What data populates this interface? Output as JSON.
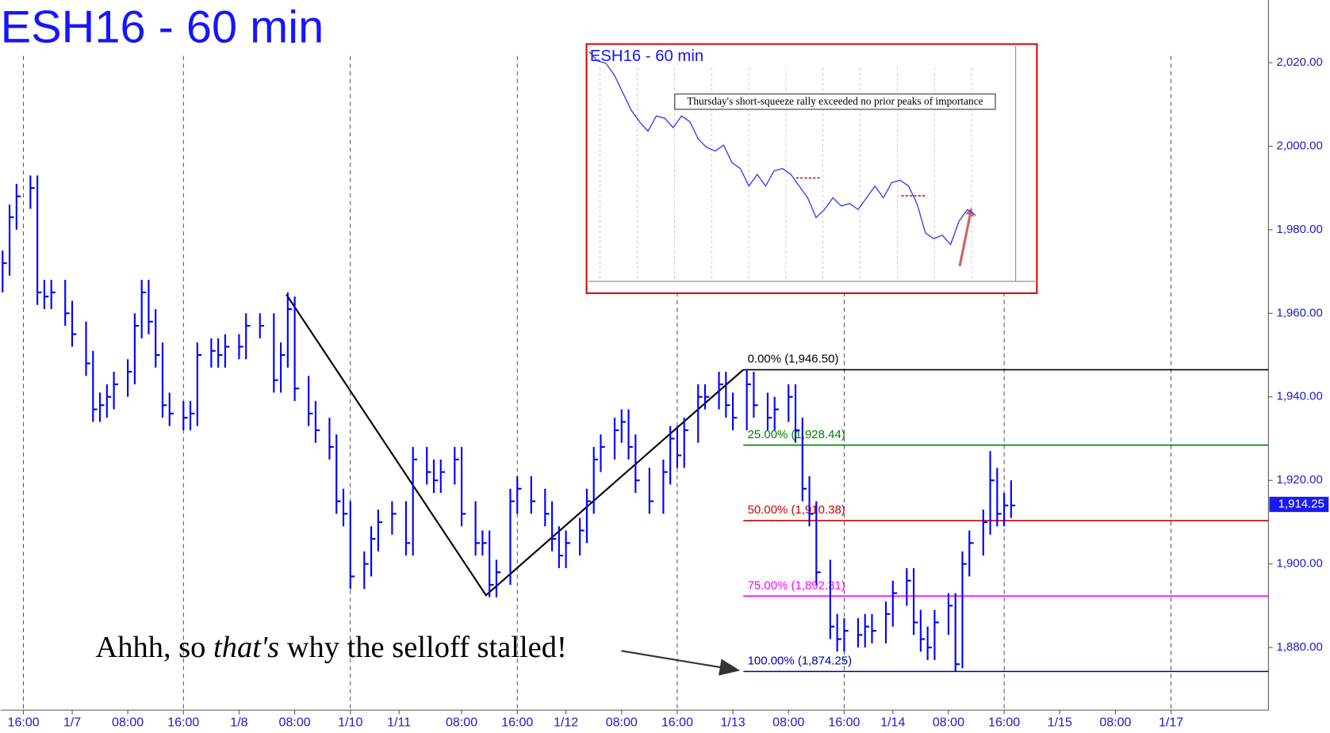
{
  "chart_data": {
    "type": "ohlc",
    "title": "ESH16 - 60 min",
    "x": [
      -3,
      -2,
      -1,
      1,
      2,
      3,
      4,
      6,
      7,
      9,
      10,
      11,
      12,
      13,
      15,
      16,
      17,
      18,
      19,
      20,
      21,
      23,
      24,
      25,
      27,
      28,
      29,
      31,
      32,
      34,
      36,
      37,
      38,
      39,
      41,
      42,
      44,
      45,
      46,
      47,
      49,
      50,
      51,
      53,
      55,
      56,
      58,
      59,
      60,
      62,
      63,
      65,
      66,
      67,
      68,
      70,
      71,
      73,
      75,
      76,
      77,
      78,
      80,
      81,
      82,
      83,
      85,
      86,
      87,
      88,
      90,
      92,
      93,
      94,
      95,
      97,
      98,
      100,
      101,
      102,
      104,
      105,
      107,
      108,
      110,
      111,
      112,
      113,
      114,
      116,
      117,
      118,
      120,
      121,
      122,
      124,
      125,
      127,
      128,
      129,
      130,
      131,
      133,
      134,
      135,
      136,
      138,
      139,
      140,
      141,
      142
    ],
    "high": [
      1975,
      1986,
      1991,
      1993,
      1993,
      1968,
      1968,
      1968,
      1963,
      1958,
      1951,
      1941,
      1943,
      1946,
      1949,
      1960,
      1968,
      1968,
      1961,
      1953,
      1941,
      1939,
      1939,
      1953,
      1954,
      1954,
      1955,
      1955,
      1960,
      1960,
      1960,
      1953,
      1965,
      1964,
      1945,
      1939,
      1935,
      1931,
      1918,
      1915,
      1903,
      1909,
      1913,
      1915,
      1915,
      1928,
      1928,
      1925,
      1925,
      1928,
      1928,
      1915,
      1908,
      1908,
      1901,
      1918,
      1921,
      1921,
      1918,
      1915,
      1909,
      1908,
      1911,
      1918,
      1928,
      1931,
      1935,
      1937,
      1937,
      1931,
      1923,
      1925,
      1933,
      1933,
      1935,
      1943,
      1943,
      1946,
      1946,
      1941,
      1946.5,
      1946,
      1941,
      1940,
      1943,
      1943,
      1935,
      1921,
      1915,
      1901,
      1888,
      1887,
      1887,
      1888,
      1888,
      1891,
      1896,
      1899,
      1899,
      1889,
      1885,
      1889,
      1893,
      1893,
      1903,
      1908,
      1913,
      1927,
      1923,
      1917,
      1920
    ],
    "low": [
      1965,
      1969,
      1980,
      1985,
      1962,
      1961,
      1961,
      1957,
      1952,
      1945,
      1934,
      1934,
      1935,
      1937,
      1940,
      1943,
      1954,
      1955,
      1947,
      1935,
      1933,
      1932,
      1932,
      1933,
      1947,
      1947,
      1947,
      1949,
      1949,
      1954,
      1941,
      1941,
      1947,
      1939,
      1933,
      1929,
      1925,
      1912,
      1909,
      1894,
      1894,
      1897,
      1903,
      1907,
      1902,
      1902,
      1919,
      1917,
      1917,
      1919,
      1909,
      1902,
      1902,
      1892,
      1892,
      1895,
      1912,
      1912,
      1909,
      1903,
      1899,
      1899,
      1902,
      1905,
      1912,
      1922,
      1925,
      1929,
      1925,
      1917,
      1912,
      1912,
      1919,
      1923,
      1923,
      1929,
      1937,
      1937,
      1935,
      1932,
      1932,
      1935,
      1932,
      1932,
      1934,
      1929,
      1915,
      1909,
      1895,
      1882,
      1879,
      1879,
      1880,
      1880,
      1881,
      1881,
      1885,
      1890,
      1883,
      1879,
      1877,
      1877,
      1883,
      1874.25,
      1875,
      1897,
      1902,
      1907,
      1909,
      1909,
      1911
    ],
    "close": [
      1972,
      1983,
      1988,
      1990,
      1965,
      1964,
      1965,
      1960,
      1955,
      1948,
      1937,
      1938,
      1940,
      1943,
      1946,
      1957,
      1965,
      1958,
      1950,
      1938,
      1936,
      1935,
      1936,
      1950,
      1951,
      1950,
      1952,
      1952,
      1957,
      1957,
      1944,
      1950,
      1961,
      1942,
      1936,
      1932,
      1928,
      1915,
      1912,
      1897,
      1900,
      1906,
      1910,
      1912,
      1905,
      1925,
      1922,
      1920,
      1922,
      1925,
      1912,
      1905,
      1905,
      1895,
      1898,
      1915,
      1918,
      1915,
      1912,
      1906,
      1902,
      1905,
      1908,
      1915,
      1925,
      1928,
      1932,
      1934,
      1928,
      1920,
      1915,
      1922,
      1930,
      1926,
      1932,
      1940,
      1940,
      1943,
      1938,
      1935,
      1943,
      1938,
      1935,
      1937,
      1940,
      1932,
      1918,
      1912,
      1898,
      1885,
      1882,
      1884,
      1883,
      1885,
      1884,
      1888,
      1893,
      1896,
      1886,
      1882,
      1880,
      1886,
      1890,
      1876,
      1900,
      1905,
      1910,
      1920,
      1912,
      1914,
      1914
    ],
    "color": "#0000ff",
    "xlim": [
      -3.3,
      179
    ],
    "ylim": [
      1865,
      2035
    ],
    "xticks": [
      {
        "value": 0,
        "label": "16:00"
      },
      {
        "value": 7,
        "label": "1/7"
      },
      {
        "value": 15,
        "label": "08:00"
      },
      {
        "value": 23,
        "label": "16:00"
      },
      {
        "value": 31,
        "label": "1/8"
      },
      {
        "value": 39,
        "label": "08:00"
      },
      {
        "value": 47,
        "label": "1/10"
      },
      {
        "value": 54,
        "label": "1/11"
      },
      {
        "value": 63,
        "label": "08:00"
      },
      {
        "value": 71,
        "label": "16:00"
      },
      {
        "value": 78,
        "label": "1/12"
      },
      {
        "value": 86,
        "label": "08:00"
      },
      {
        "value": 94,
        "label": "16:00"
      },
      {
        "value": 102,
        "label": "1/13"
      },
      {
        "value": 110,
        "label": "08:00"
      },
      {
        "value": 118,
        "label": "16:00"
      },
      {
        "value": 125,
        "label": "1/14"
      },
      {
        "value": 133,
        "label": "08:00"
      },
      {
        "value": 141,
        "label": "16:00"
      },
      {
        "value": 149,
        "label": "1/15"
      },
      {
        "value": 157,
        "label": "08:00"
      },
      {
        "value": 165,
        "label": "1/17"
      }
    ],
    "yticks": [
      {
        "value": 2020,
        "label": "2,020.00"
      },
      {
        "value": 2000,
        "label": "2,000.00"
      },
      {
        "value": 1980,
        "label": "1,980.00"
      },
      {
        "value": 1960,
        "label": "1,960.00"
      },
      {
        "value": 1940,
        "label": "1,940.00"
      },
      {
        "value": 1920,
        "label": "1,920.00"
      },
      {
        "value": 1900,
        "label": "1,900.00"
      },
      {
        "value": 1880,
        "label": "1,880.00"
      }
    ],
    "last_price": {
      "value": 1914.25,
      "label": "1,914.25"
    },
    "fib_levels": [
      {
        "label": "0.00% (1,946.50)",
        "value": 1946.5,
        "color": "#000000"
      },
      {
        "label": "25.00% (1,928.44)",
        "value": 1928.44,
        "color": "#007f00"
      },
      {
        "label": "50.00% (1,910.38)",
        "value": 1910.38,
        "color": "#cc0000"
      },
      {
        "label": "75.00% (1,892.31)",
        "value": 1892.31,
        "color": "#ff00ff"
      },
      {
        "label": "100.00% (1,874.25)",
        "value": 1874.25,
        "color": "#0000aa"
      }
    ],
    "pattern_line": {
      "x": [
        37.8,
        66.5,
        103.5
      ],
      "y": [
        1964.5,
        1892.5,
        1946.5
      ]
    },
    "annotation": [
      "Ahhh, so ",
      "that's",
      " why the selloff stalled!"
    ],
    "inset": {
      "title": "ESH16 - 60 min",
      "note": "Thursday's short-squeeze rally exceeded no prior peaks of importance",
      "ylim": [
        1865,
        2065
      ],
      "values": [
        2060,
        2052,
        2050,
        2040,
        2025,
        2010,
        2000,
        1992,
        2005,
        2003,
        1995,
        2005,
        2000,
        1985,
        1978,
        1975,
        1980,
        1965,
        1960,
        1945,
        1955,
        1945,
        1958,
        1960,
        1955,
        1945,
        1935,
        1918,
        1925,
        1935,
        1928,
        1930,
        1925,
        1935,
        1945,
        1935,
        1948,
        1950,
        1945,
        1930,
        1905,
        1900,
        1903,
        1895,
        1915,
        1925,
        1920
      ]
    }
  }
}
